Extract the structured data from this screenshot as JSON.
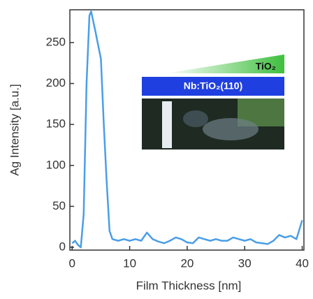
{
  "chart_data": {
    "type": "line",
    "xlabel": "Film Thickness [nm]",
    "ylabel": "Ag Intensity [a.u.]",
    "xlim": [
      -0.4,
      40.3
    ],
    "xticks": [
      0,
      10,
      20,
      30,
      40
    ],
    "ylim": [
      -3.4,
      290
    ],
    "yticks": [
      0,
      50,
      100,
      150,
      200,
      250
    ],
    "series": [
      {
        "color": "#4a9ee8",
        "x": [
          0,
          0.5,
          1,
          1.5,
          2,
          2.5,
          3,
          3.3,
          4,
          5,
          5.5,
          6,
          6.5,
          7,
          8,
          9,
          10,
          11,
          12,
          13,
          14,
          15,
          16,
          17,
          18,
          19,
          20,
          21,
          22,
          23,
          24,
          25,
          26,
          27,
          28,
          29,
          30,
          31,
          32,
          33,
          34,
          35,
          36,
          37,
          38,
          39,
          40
        ],
        "values": [
          5,
          8,
          3,
          0,
          40,
          200,
          283,
          288,
          265,
          230,
          150,
          80,
          20,
          10,
          8,
          10,
          8,
          10,
          8,
          18,
          10,
          7,
          5,
          8,
          12,
          10,
          6,
          5,
          12,
          10,
          8,
          10,
          8,
          8,
          12,
          10,
          8,
          10,
          6,
          5,
          4,
          8,
          15,
          12,
          14,
          10,
          33
        ]
      }
    ],
    "inset": {
      "layer_label": "TiO₂",
      "substrate_label": "Nb:TiO₂(110)"
    }
  }
}
